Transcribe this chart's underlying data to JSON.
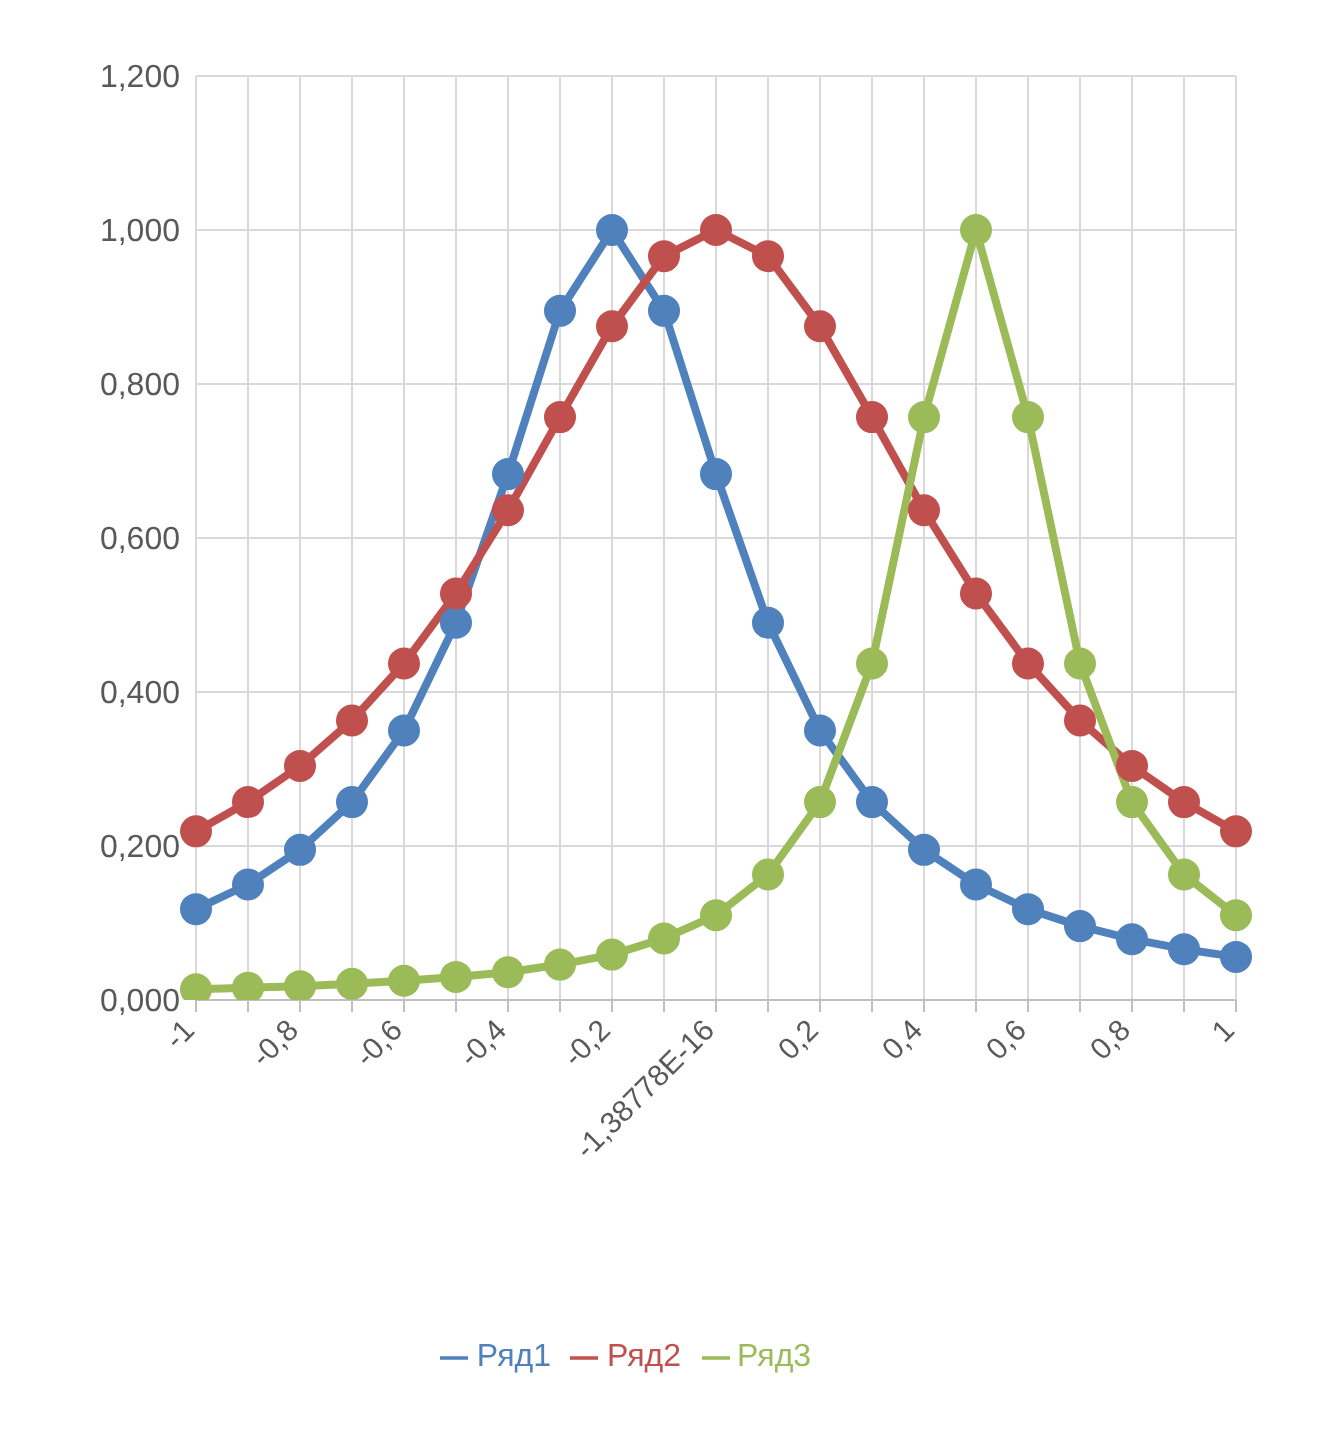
{
  "chart_data": {
    "type": "line",
    "categories": [
      "-1",
      null,
      "-0,8",
      null,
      "-0,6",
      null,
      "-0,4",
      null,
      "-0,2",
      null,
      "-1,38778E-16",
      null,
      "0,2",
      null,
      "0,4",
      null,
      "0,6",
      null,
      "0,8",
      null,
      "1"
    ],
    "series": [
      {
        "name": "Ряд1",
        "color": "#4f81bd",
        "values": [
          0.118,
          0.15,
          0.195,
          0.257,
          0.35,
          0.49,
          0.683,
          0.895,
          1.0,
          0.895,
          0.683,
          0.49,
          0.35,
          0.257,
          0.195,
          0.15,
          0.118,
          0.096,
          0.079,
          0.066,
          0.056
        ]
      },
      {
        "name": "Ряд2",
        "color": "#c0504d",
        "values": [
          0.219,
          0.257,
          0.304,
          0.363,
          0.437,
          0.528,
          0.636,
          0.757,
          0.875,
          0.966,
          1.0,
          0.966,
          0.875,
          0.757,
          0.636,
          0.528,
          0.437,
          0.363,
          0.304,
          0.257,
          0.219
        ]
      },
      {
        "name": "Ряд3",
        "color": "#9bbb59",
        "values": [
          0.014,
          0.016,
          0.018,
          0.021,
          0.025,
          0.03,
          0.036,
          0.046,
          0.059,
          0.08,
          0.11,
          0.163,
          0.257,
          0.437,
          0.757,
          1.0,
          0.757,
          0.437,
          0.257,
          0.163,
          0.11
        ]
      }
    ],
    "ylim": [
      0,
      1.2
    ],
    "yticks": [
      {
        "value": 0,
        "label": "0,000"
      },
      {
        "value": 0.2,
        "label": "0,200"
      },
      {
        "value": 0.4,
        "label": "0,400"
      },
      {
        "value": 0.6,
        "label": "0,600"
      },
      {
        "value": 0.8,
        "label": "0,800"
      },
      {
        "value": 1,
        "label": "1,000"
      },
      {
        "value": 1.2,
        "label": "1,200"
      }
    ],
    "grid": true,
    "legend": "bottom",
    "marker": "circle",
    "line_style": "solid"
  }
}
